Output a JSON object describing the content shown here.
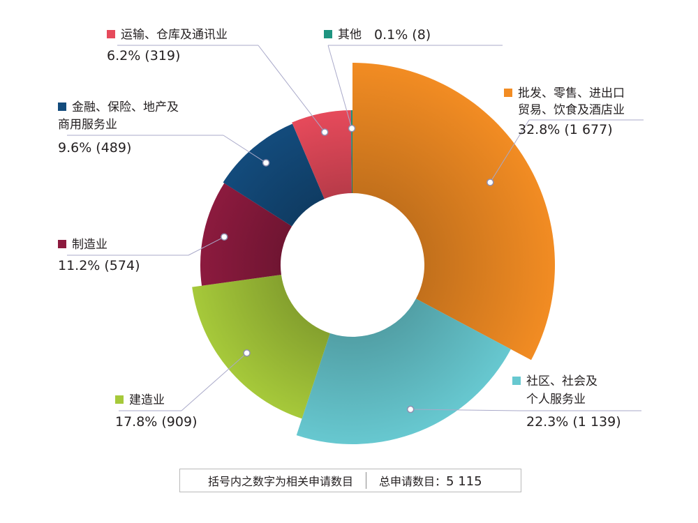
{
  "chart_data": {
    "type": "pie",
    "donut": true,
    "title": "",
    "slices": [
      {
        "name_lines": [
          "批发、零售、进出口",
          "贸易、饮食及酒店业"
        ],
        "percent_label": "32.8%",
        "count_label": "(1 677)",
        "value": 1677,
        "color": "#f28c23",
        "labelPos": "right-top"
      },
      {
        "name_lines": [
          "社区、社会及",
          "个人服务业"
        ],
        "percent_label": "22.3%",
        "count_label": "(1 139)",
        "value": 1139,
        "color": "#67c8d0",
        "labelPos": "right-bottom"
      },
      {
        "name_lines": [
          "建造业"
        ],
        "percent_label": "17.8%",
        "count_label": "(909)",
        "value": 909,
        "color": "#a6c93a",
        "labelPos": "left-bottom"
      },
      {
        "name_lines": [
          "制造业"
        ],
        "percent_label": "11.2%",
        "count_label": "(574)",
        "value": 574,
        "color": "#8c1a3e",
        "labelPos": "left-middle"
      },
      {
        "name_lines": [
          "金融、保险、地产及",
          "商用服务业"
        ],
        "percent_label": "9.6%",
        "count_label": "(489)",
        "value": 489,
        "color": "#134b7c",
        "labelPos": "left-top"
      },
      {
        "name_lines": [
          "运输、仓库及通讯业"
        ],
        "percent_label": "6.2%",
        "count_label": "(319)",
        "value": 319,
        "color": "#e64a5b",
        "labelPos": "top-left"
      },
      {
        "name_lines": [
          "其他"
        ],
        "percent_label": "0.1%",
        "count_label": "(8)",
        "value": 8,
        "color": "#1e9480",
        "labelPos": "top"
      }
    ]
  },
  "footer": {
    "note": "括号内之数字为相关申请数目",
    "total_label": "总申请数目：",
    "total_value": "5 115"
  }
}
